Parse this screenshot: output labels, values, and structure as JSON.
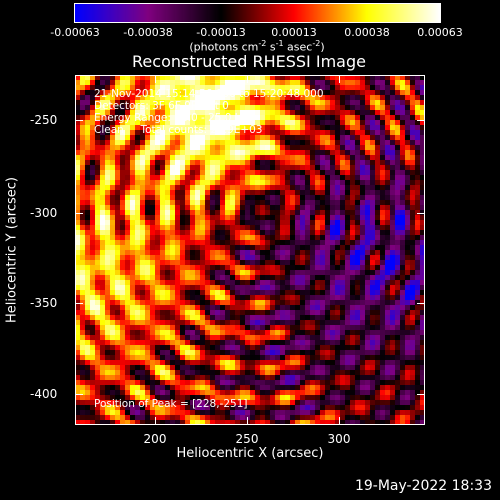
{
  "colorbar": {
    "ticks": [
      "-0.00063",
      "-0.00038",
      "-0.00013",
      "0.00013",
      "0.00038",
      "0.00063"
    ],
    "units_pre": "(photons cm",
    "units_sup1": "-2",
    "units_mid1": " s",
    "units_sup2": "-1",
    "units_mid2": " asec",
    "units_sup3": "-2",
    "units_post": ")"
  },
  "title": "Reconstructed RHESSI Image",
  "overlay": {
    "time_range": "21-Nov-2014 15:14:56.000 to 15:20:48.000",
    "detectors": "Detectors: 3F 6F 9F, Att 0",
    "energy_range": "Energy Range: 12.0 - 25.0 keV",
    "method": "Clean     Total counts: 2.19E+03",
    "peak": "Position of Peak = [228,-251]"
  },
  "axes": {
    "xlabel": "Heliocentric X (arcsec)",
    "ylabel": "Heliocentric Y (arcsec)",
    "xticks": [
      "200",
      "250",
      "300"
    ],
    "yticks": [
      "-250",
      "-300",
      "-350",
      "-400"
    ]
  },
  "footer": {
    "date": "19-May-2022 18:33"
  },
  "colors": {
    "background": "#000000",
    "foreground": "#ffffff",
    "colormap": [
      "#0000ff",
      "#800080",
      "#000000",
      "#ff0000",
      "#ffff00",
      "#ffffff"
    ]
  }
}
